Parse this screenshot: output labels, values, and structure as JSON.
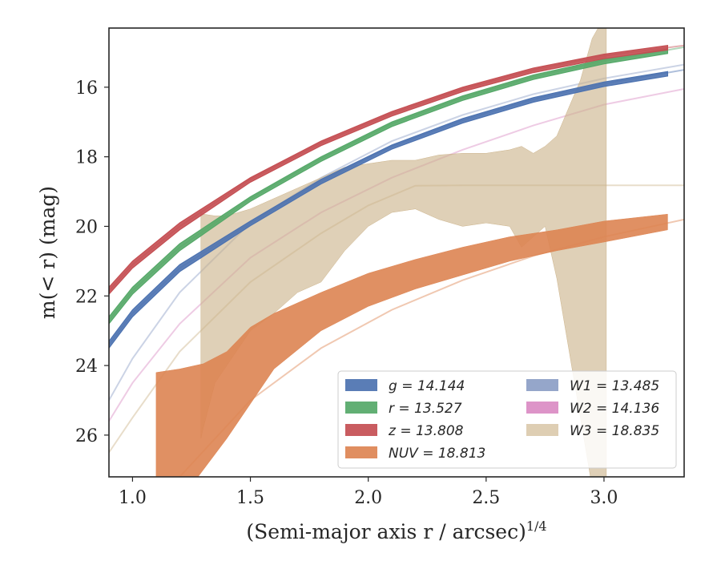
{
  "chart_data": {
    "type": "line",
    "xlabel": "(Semi-major axis r / arcsec)",
    "xlabel_sup": "1/4",
    "ylabel": "m(< r) (mag)",
    "xlim": [
      0.9,
      3.34
    ],
    "ylim": [
      27.2,
      14.3
    ],
    "y_inverted": true,
    "xticks": [
      1.0,
      1.5,
      2.0,
      2.5,
      3.0
    ],
    "xtick_labels": [
      "1.0",
      "1.5",
      "2.0",
      "2.5",
      "3.0"
    ],
    "yticks": [
      16,
      18,
      20,
      22,
      24,
      26
    ],
    "ytick_labels": [
      "16",
      "18",
      "20",
      "22",
      "24",
      "26"
    ],
    "grid": false,
    "legend_position": "lower-right",
    "legend_columns": 2,
    "series": [
      {
        "name": "g = 14.144",
        "color": "#4c72b0",
        "faint": {
          "x": [
            0.9,
            1.0,
            1.2,
            1.5,
            1.8,
            2.1,
            2.4,
            2.7,
            3.0,
            3.34
          ],
          "y": [
            23.4,
            22.5,
            21.2,
            19.9,
            18.7,
            17.7,
            16.95,
            16.35,
            15.9,
            15.5
          ]
        },
        "band": {
          "x": [
            0.9,
            1.0,
            1.2,
            1.5,
            1.8,
            2.1,
            2.4,
            2.7,
            3.0,
            3.27
          ],
          "y_low": [
            23.5,
            22.6,
            21.3,
            19.98,
            18.78,
            17.78,
            17.03,
            16.43,
            15.98,
            15.68
          ],
          "y_high": [
            23.3,
            22.4,
            21.1,
            19.85,
            18.65,
            17.66,
            16.9,
            16.3,
            15.85,
            15.55
          ]
        }
      },
      {
        "name": "r = 13.527",
        "color": "#55a868",
        "faint": {
          "x": [
            0.9,
            1.0,
            1.2,
            1.5,
            1.8,
            2.1,
            2.4,
            2.7,
            3.0,
            3.34
          ],
          "y": [
            22.7,
            21.85,
            20.6,
            19.2,
            18.05,
            17.05,
            16.3,
            15.7,
            15.25,
            14.85
          ]
        },
        "band": {
          "x": [
            0.9,
            1.0,
            1.2,
            1.5,
            1.8,
            2.1,
            2.4,
            2.7,
            3.0,
            3.27
          ],
          "y_low": [
            22.8,
            21.95,
            20.7,
            19.28,
            18.13,
            17.13,
            16.38,
            15.78,
            15.33,
            15.03
          ],
          "y_high": [
            22.6,
            21.75,
            20.5,
            19.15,
            18.0,
            17.0,
            16.25,
            15.65,
            15.2,
            14.9
          ]
        }
      },
      {
        "name": "z = 13.808",
        "color": "#c44e52",
        "faint": {
          "x": [
            0.9,
            1.0,
            1.2,
            1.5,
            1.8,
            2.1,
            2.4,
            2.7,
            3.0,
            3.34
          ],
          "y": [
            21.85,
            21.1,
            20.0,
            18.65,
            17.6,
            16.75,
            16.05,
            15.5,
            15.1,
            14.8
          ]
        },
        "band": {
          "x": [
            0.9,
            1.0,
            1.2,
            1.5,
            1.8,
            2.1,
            2.4,
            2.7,
            3.0,
            3.27
          ],
          "y_low": [
            21.95,
            21.2,
            20.1,
            18.73,
            17.68,
            16.83,
            16.13,
            15.58,
            15.18,
            14.93
          ],
          "y_high": [
            21.75,
            21.0,
            19.9,
            18.6,
            17.55,
            16.7,
            16.0,
            15.45,
            15.05,
            14.8
          ]
        }
      },
      {
        "name": "NUV = 18.813",
        "color": "#dd8452",
        "faint": {
          "x": [
            0.9,
            1.0,
            1.2,
            1.5,
            1.8,
            2.1,
            2.4,
            2.7,
            3.0,
            3.34
          ],
          "y": [
            30.0,
            29.0,
            27.2,
            25.0,
            23.5,
            22.4,
            21.55,
            20.85,
            20.3,
            19.8
          ]
        },
        "band": {
          "x": [
            1.1,
            1.2,
            1.3,
            1.4,
            1.5,
            1.6,
            1.8,
            2.0,
            2.2,
            2.4,
            2.6,
            2.8,
            3.0,
            3.27
          ],
          "y_low": [
            28.0,
            27.9,
            27.0,
            26.1,
            25.1,
            24.1,
            23.0,
            22.3,
            21.8,
            21.4,
            21.0,
            20.7,
            20.45,
            20.1
          ],
          "y_high": [
            24.2,
            24.1,
            23.95,
            23.6,
            22.9,
            22.5,
            21.9,
            21.35,
            20.95,
            20.6,
            20.3,
            20.1,
            19.85,
            19.65
          ]
        }
      },
      {
        "name": "W1 = 13.485",
        "color": "#8c9ec5",
        "faint": {
          "x": [
            0.9,
            1.0,
            1.2,
            1.5,
            1.8,
            2.1,
            2.4,
            2.7,
            3.0,
            3.34
          ],
          "y": [
            25.0,
            23.8,
            21.9,
            19.9,
            18.6,
            17.55,
            16.8,
            16.2,
            15.75,
            15.35
          ]
        }
      },
      {
        "name": "W2 = 14.136",
        "color": "#da8bc3",
        "faint": {
          "x": [
            0.9,
            1.0,
            1.2,
            1.5,
            1.8,
            2.1,
            2.4,
            2.7,
            3.0,
            3.34
          ],
          "y": [
            25.6,
            24.5,
            22.8,
            20.9,
            19.6,
            18.6,
            17.8,
            17.1,
            16.5,
            16.05
          ]
        }
      },
      {
        "name": "W3 = 18.835",
        "color": "#ccb38a",
        "faint": {
          "x": [
            0.9,
            1.0,
            1.2,
            1.5,
            1.8,
            2.0,
            2.2,
            2.4,
            2.6,
            2.8,
            3.0,
            3.34
          ],
          "y": [
            26.5,
            25.5,
            23.6,
            21.6,
            20.2,
            19.4,
            18.83,
            18.82,
            18.82,
            18.82,
            18.82,
            18.82
          ]
        },
        "band": {
          "x": [
            1.29,
            1.3,
            1.35,
            1.4,
            1.5,
            1.6,
            1.7,
            1.8,
            1.9,
            2.0,
            2.1,
            2.2,
            2.3,
            2.4,
            2.5,
            2.6,
            2.65,
            2.7,
            2.75,
            2.8,
            2.85,
            2.9,
            2.95,
            3.0,
            3.01
          ],
          "y_low": [
            26.1,
            25.8,
            24.5,
            24.0,
            23.0,
            22.5,
            21.9,
            21.6,
            20.7,
            20.0,
            19.6,
            19.5,
            19.8,
            20.0,
            19.9,
            20.0,
            20.6,
            20.3,
            20.0,
            21.5,
            23.5,
            25.5,
            27.5,
            28.5,
            28.5
          ],
          "y_high": [
            19.6,
            19.65,
            19.7,
            19.7,
            19.5,
            19.2,
            18.9,
            18.6,
            18.3,
            18.2,
            18.1,
            18.1,
            17.95,
            17.9,
            17.9,
            17.8,
            17.7,
            17.9,
            17.7,
            17.4,
            16.6,
            15.8,
            14.6,
            14.0,
            14.0
          ]
        }
      }
    ]
  }
}
